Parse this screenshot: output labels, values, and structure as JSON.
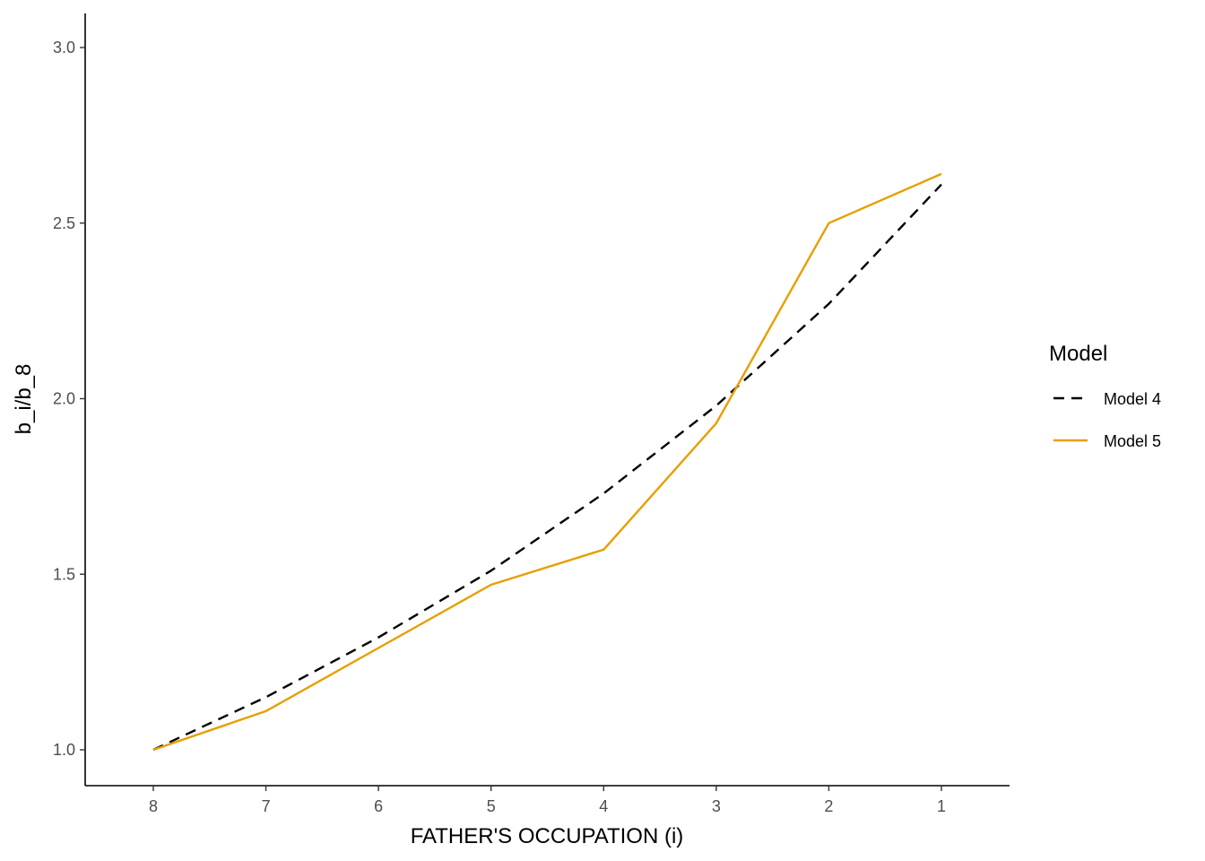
{
  "chart_data": {
    "type": "line",
    "xlabel": "FATHER'S OCCUPATION (i)",
    "ylabel": "b_i/b_8",
    "categories": [
      "8",
      "7",
      "6",
      "5",
      "4",
      "3",
      "2",
      "1"
    ],
    "ylim": [
      0.9,
      3.1
    ],
    "yticks": [
      "1.0",
      "1.5",
      "2.0",
      "2.5",
      "3.0"
    ],
    "grid": false,
    "legend": {
      "title": "Model",
      "position": "right"
    },
    "series": [
      {
        "name": "Model 4",
        "values": [
          1.0,
          1.15,
          1.32,
          1.51,
          1.73,
          1.98,
          2.27,
          2.61
        ],
        "color": "#000000",
        "style": "dashed"
      },
      {
        "name": "Model 5",
        "values": [
          1.0,
          1.11,
          1.29,
          1.47,
          1.57,
          1.93,
          2.5,
          2.64
        ],
        "color": "#E69F00",
        "style": "solid"
      }
    ]
  }
}
